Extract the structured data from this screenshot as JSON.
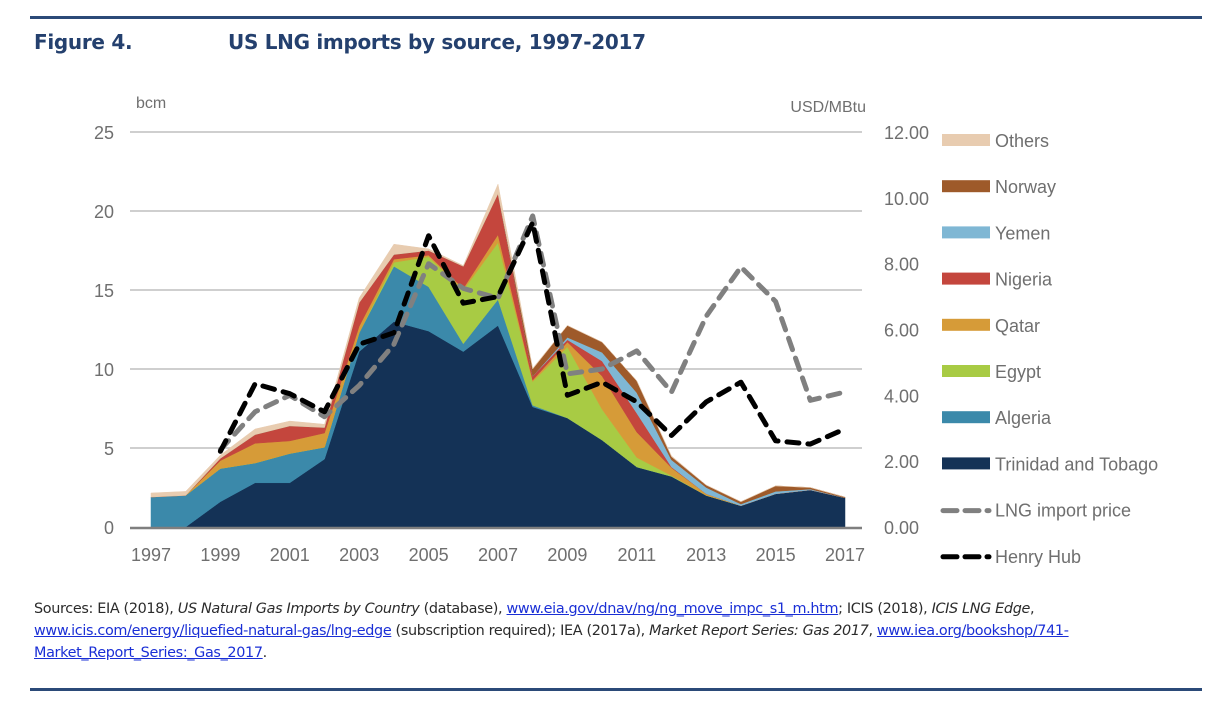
{
  "figure": {
    "label": "Figure 4.",
    "title": "US LNG imports by source, 1997-2017"
  },
  "chart_data": {
    "type": "area",
    "subtype": "stacked area with dual-axis line overlay",
    "title": "US LNG imports by source, 1997-2017",
    "x": [
      1997,
      1998,
      1999,
      2000,
      2001,
      2002,
      2003,
      2004,
      2005,
      2006,
      2007,
      2008,
      2009,
      2010,
      2011,
      2012,
      2013,
      2014,
      2015,
      2016,
      2017
    ],
    "x_tick_labels": [
      "1997",
      "1999",
      "2001",
      "2003",
      "2005",
      "2007",
      "2009",
      "2011",
      "2013",
      "2015",
      "2017"
    ],
    "left_axis": {
      "label": "bcm",
      "ylim": [
        0,
        25
      ],
      "ticks": [
        "0",
        "5",
        "10",
        "15",
        "20",
        "25"
      ],
      "tick_values": [
        0,
        5,
        10,
        15,
        20,
        25
      ]
    },
    "right_axis": {
      "label": "USD/MBtu",
      "ylim": [
        0,
        12
      ],
      "ticks": [
        "0.00",
        "2.00",
        "4.00",
        "6.00",
        "8.00",
        "10.00",
        "12.00"
      ],
      "tick_values": [
        0,
        2,
        4,
        6,
        8,
        10,
        12
      ]
    },
    "grid": "horizontal",
    "legend_position": "right",
    "stacked_series": [
      {
        "name": "Trinidad and Tobago",
        "color": "#143256",
        "axis": "left",
        "values": [
          0,
          0,
          1.6,
          2.8,
          2.8,
          4.3,
          11.1,
          13.0,
          12.4,
          11.1,
          12.75,
          7.6,
          6.9,
          5.5,
          3.8,
          3.2,
          2.0,
          1.35,
          2.1,
          2.35,
          1.85
        ]
      },
      {
        "name": "Algeria",
        "color": "#3b89aa",
        "axis": "left",
        "values": [
          1.9,
          2.0,
          2.1,
          1.25,
          1.85,
          0.75,
          1.2,
          3.5,
          2.8,
          0.5,
          1.65,
          0.1,
          0,
          0,
          0,
          0,
          0,
          0,
          0,
          0,
          0
        ]
      },
      {
        "name": "Egypt",
        "color": "#a8cb44",
        "axis": "left",
        "values": [
          0,
          0,
          0,
          0,
          0,
          0,
          0,
          0.25,
          1.9,
          3.4,
          3.6,
          1.5,
          4.5,
          1.95,
          0.6,
          0.05,
          0,
          0,
          0,
          0,
          0
        ]
      },
      {
        "name": "Qatar",
        "color": "#d69b38",
        "axis": "left",
        "values": [
          0,
          0,
          0.5,
          1.25,
          0.8,
          0.9,
          0.4,
          0.2,
          0.1,
          0.1,
          0.5,
          0.1,
          0.3,
          2.1,
          1.6,
          0.5,
          0.1,
          0,
          0,
          0,
          0
        ]
      },
      {
        "name": "Nigeria",
        "color": "#c4463d",
        "axis": "left",
        "values": [
          0,
          0,
          0.15,
          0.55,
          0.95,
          0.35,
          1.5,
          0.3,
          0.3,
          1.4,
          2.6,
          0.25,
          0.15,
          0.95,
          1.2,
          0.05,
          0,
          0,
          0,
          0,
          0
        ]
      },
      {
        "name": "Yemen",
        "color": "#7fb7d4",
        "axis": "left",
        "values": [
          0,
          0,
          0,
          0,
          0,
          0,
          0,
          0,
          0,
          0,
          0,
          0,
          0.15,
          0.55,
          1.3,
          0.45,
          0.4,
          0.1,
          0.15,
          0.05,
          0
        ]
      },
      {
        "name": "Norway",
        "color": "#9e5a2a",
        "axis": "left",
        "values": [
          0,
          0,
          0,
          0,
          0,
          0,
          0,
          0,
          0,
          0,
          0,
          0.45,
          0.75,
          0.65,
          0.75,
          0.2,
          0.15,
          0.15,
          0.35,
          0.1,
          0.05
        ]
      },
      {
        "name": "Others",
        "color": "#e8ccb0",
        "axis": "left",
        "values": [
          0.25,
          0.25,
          0.2,
          0.35,
          0.3,
          0.2,
          0.3,
          0.65,
          0.1,
          0.05,
          0.6,
          0.05,
          0,
          0,
          0,
          0.05,
          0,
          0,
          0,
          0,
          0
        ]
      }
    ],
    "line_series": [
      {
        "name": "LNG import price",
        "color": "#808080",
        "style": "dashed",
        "axis": "right",
        "values": [
          null,
          null,
          2.35,
          3.5,
          4.0,
          3.35,
          4.3,
          5.55,
          8.0,
          7.25,
          6.95,
          9.45,
          4.65,
          4.8,
          5.35,
          4.1,
          6.4,
          7.9,
          6.85,
          3.85,
          4.1
        ]
      },
      {
        "name": "Henry Hub",
        "color": "#000000",
        "style": "dashed",
        "axis": "right",
        "values": [
          null,
          null,
          2.3,
          4.35,
          4.05,
          3.5,
          5.55,
          5.9,
          8.85,
          6.8,
          7.0,
          9.25,
          4.0,
          4.4,
          3.8,
          2.78,
          3.8,
          4.4,
          2.62,
          2.52,
          2.98
        ]
      }
    ],
    "legend": [
      "Others",
      "Norway",
      "Yemen",
      "Nigeria",
      "Qatar",
      "Egypt",
      "Algeria",
      "Trinidad and Tobago",
      "LNG import price",
      "Henry Hub"
    ]
  },
  "sources": {
    "prefix": "Sources: EIA (2018), ",
    "eia_title": "US Natural Gas Imports by Country",
    "eia_suffix": " (database), ",
    "eia_link": "www.eia.gov/dnav/ng/ng_move_impc_s1_m.htm",
    "icis_prefix": "; ICIS (2018), ",
    "icis_title": "ICIS LNG Edge",
    "icis_sep": ", ",
    "icis_link": "www.icis.com/energy/liquefied-natural-gas/lng-edge",
    "icis_suffix": " (subscription required); IEA (2017a), ",
    "iea_title": "Market Report Series: Gas 2017",
    "iea_sep": ", ",
    "iea_link": "www.iea.org/bookshop/741-Market_Report_Series:_Gas_2017",
    "end": "."
  }
}
